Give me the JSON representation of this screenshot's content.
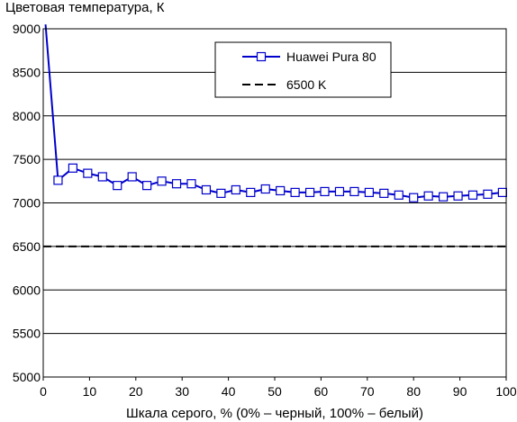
{
  "chart_data": {
    "type": "line",
    "title": "Цветовая температура, К",
    "xlabel": "Шкала серого, % (0% – черный, 100% – белый)",
    "ylabel": "",
    "xlim": [
      0,
      100
    ],
    "ylim": [
      5000,
      9000
    ],
    "x_ticks": [
      "0",
      "10",
      "20",
      "30",
      "40",
      "50",
      "60",
      "70",
      "80",
      "90",
      "100"
    ],
    "y_ticks": [
      "5000",
      "5500",
      "6000",
      "6500",
      "7000",
      "7500",
      "8000",
      "8500",
      "9000"
    ],
    "grid": "horizontal",
    "legend_position": "top-right",
    "series": [
      {
        "name": "Huawei Pura 80",
        "color": "#0000cc",
        "marker": "open-square",
        "x": [
          3.2,
          6.4,
          9.6,
          12.8,
          16.0,
          19.2,
          22.4,
          25.6,
          28.8,
          32.0,
          35.2,
          38.4,
          41.6,
          44.8,
          48.0,
          51.2,
          54.4,
          57.6,
          60.8,
          64.0,
          67.2,
          70.4,
          73.6,
          76.8,
          80.0,
          83.2,
          86.4,
          89.6,
          92.8,
          96.0,
          99.2
        ],
        "values": [
          7260,
          7400,
          7340,
          7300,
          7200,
          7300,
          7200,
          7250,
          7220,
          7220,
          7150,
          7110,
          7150,
          7120,
          7160,
          7140,
          7120,
          7120,
          7130,
          7130,
          7130,
          7120,
          7110,
          7090,
          7060,
          7080,
          7070,
          7080,
          7090,
          7100,
          7120
        ],
        "start_point": {
          "x": 0.5,
          "y": 9050
        }
      },
      {
        "name": "6500 K",
        "color": "#000000",
        "style": "dashed",
        "x": [
          0,
          100
        ],
        "values": [
          6500,
          6500
        ]
      }
    ]
  }
}
